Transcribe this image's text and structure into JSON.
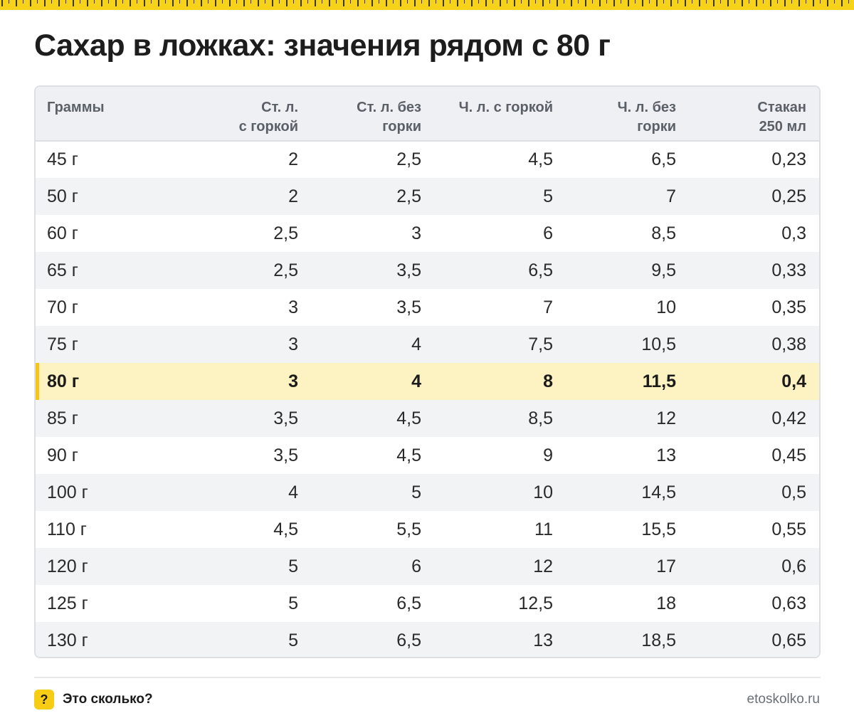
{
  "title": "Сахар в ложках: значения рядом с 80 г",
  "table": {
    "headers": [
      [
        "Граммы"
      ],
      [
        "Ст. л.",
        "с горкой"
      ],
      [
        "Ст. л. без",
        "горки"
      ],
      [
        "Ч. л. с горкой"
      ],
      [
        "Ч. л. без",
        "горки"
      ],
      [
        "Стакан",
        "250 мл"
      ]
    ],
    "highlighted_row": "80 г",
    "rows": [
      [
        "45 г",
        "2",
        "2,5",
        "4,5",
        "6,5",
        "0,23"
      ],
      [
        "50 г",
        "2",
        "2,5",
        "5",
        "7",
        "0,25"
      ],
      [
        "60 г",
        "2,5",
        "3",
        "6",
        "8,5",
        "0,3"
      ],
      [
        "65 г",
        "2,5",
        "3,5",
        "6,5",
        "9,5",
        "0,33"
      ],
      [
        "70 г",
        "3",
        "3,5",
        "7",
        "10",
        "0,35"
      ],
      [
        "75 г",
        "3",
        "4",
        "7,5",
        "10,5",
        "0,38"
      ],
      [
        "80 г",
        "3",
        "4",
        "8",
        "11,5",
        "0,4"
      ],
      [
        "85 г",
        "3,5",
        "4,5",
        "8,5",
        "12",
        "0,42"
      ],
      [
        "90 г",
        "3,5",
        "4,5",
        "9",
        "13",
        "0,45"
      ],
      [
        "100 г",
        "4",
        "5",
        "10",
        "14,5",
        "0,5"
      ],
      [
        "110 г",
        "4,5",
        "5,5",
        "11",
        "15,5",
        "0,55"
      ],
      [
        "120 г",
        "5",
        "6",
        "12",
        "17",
        "0,6"
      ],
      [
        "125 г",
        "5",
        "6,5",
        "12,5",
        "18",
        "0,63"
      ],
      [
        "130 г",
        "5",
        "6,5",
        "13",
        "18,5",
        "0,65"
      ]
    ]
  },
  "footer": {
    "badge": "?",
    "brand_name": "Это сколько?",
    "site": "etoskolko.ru"
  },
  "colors": {
    "accent": "#f7cc15",
    "highlight_bg": "#fdf2c2",
    "header_bg": "#eef0f3",
    "stripe_bg": "#f2f3f5"
  }
}
